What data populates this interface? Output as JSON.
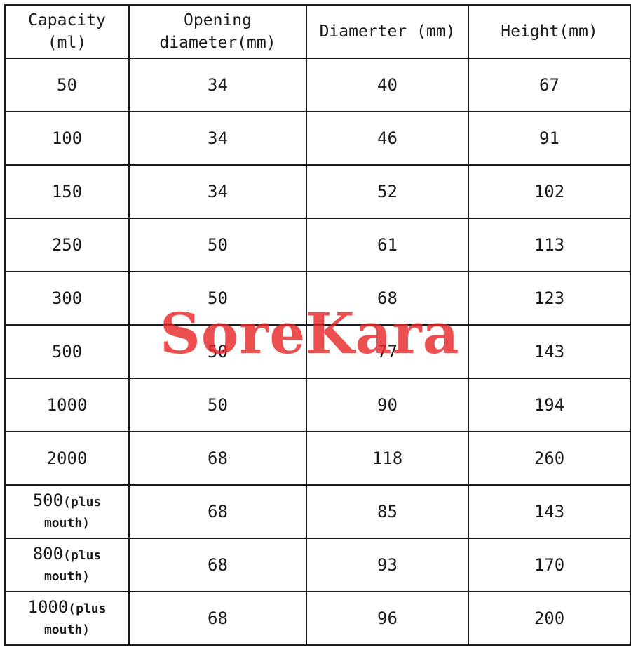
{
  "table": {
    "headers": [
      "Capacity\n(ml)",
      "Opening\ndiameter(mm)",
      "Diamerter (mm)",
      "Height(mm)"
    ],
    "rows": [
      {
        "capacity": "50",
        "capacity_note": "",
        "opening": "34",
        "diameter": "40",
        "height": "67"
      },
      {
        "capacity": "100",
        "capacity_note": "",
        "opening": "34",
        "diameter": "46",
        "height": "91"
      },
      {
        "capacity": "150",
        "capacity_note": "",
        "opening": "34",
        "diameter": "52",
        "height": "102"
      },
      {
        "capacity": "250",
        "capacity_note": "",
        "opening": "50",
        "diameter": "61",
        "height": "113"
      },
      {
        "capacity": "300",
        "capacity_note": "",
        "opening": "50",
        "diameter": "68",
        "height": "123"
      },
      {
        "capacity": "500",
        "capacity_note": "",
        "opening": "50",
        "diameter": "77",
        "height": "143"
      },
      {
        "capacity": "1000",
        "capacity_note": "",
        "opening": "50",
        "diameter": "90",
        "height": "194"
      },
      {
        "capacity": "2000",
        "capacity_note": "",
        "opening": "68",
        "diameter": "118",
        "height": "260"
      },
      {
        "capacity": "500",
        "capacity_note": "(plus",
        "capacity_note2": "mouth)",
        "opening": "68",
        "diameter": "85",
        "height": "143"
      },
      {
        "capacity": "800",
        "capacity_note": "(plus",
        "capacity_note2": "mouth)",
        "opening": "68",
        "diameter": "93",
        "height": "170"
      },
      {
        "capacity": "1000",
        "capacity_note": "(plus",
        "capacity_note2": "mouth)",
        "opening": "68",
        "diameter": "96",
        "height": "200"
      }
    ]
  },
  "watermark": {
    "text": "SoreKara",
    "color": "#e62828"
  }
}
